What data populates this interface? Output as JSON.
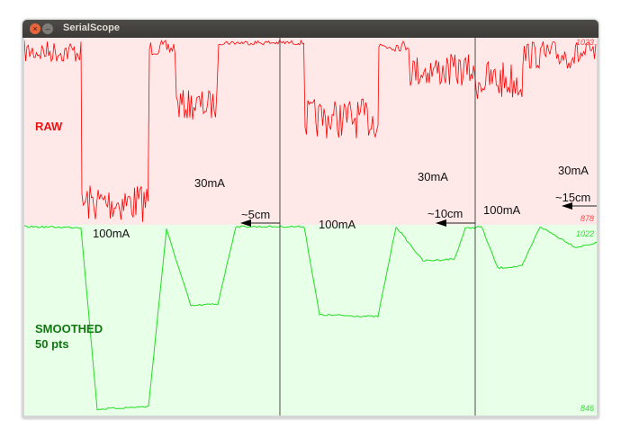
{
  "window": {
    "title": "SerialScope"
  },
  "colors": {
    "raw_bg": "#ffe8e8",
    "smooth_bg": "#e8ffe8",
    "raw_trace": "#ff0000",
    "smooth_trace": "#22dd22",
    "raw_label": "#ee1111",
    "smooth_label": "#117711"
  },
  "raw": {
    "label": "RAW",
    "max_label": "1023",
    "min_label": "878"
  },
  "smoothed": {
    "label": "SMOOTHED",
    "sub_label": "50 pts",
    "max_label": "1022",
    "min_label": "846"
  },
  "annotations": {
    "current_labels": [
      "100mA",
      "30mA",
      "100mA",
      "30mA",
      "100mA",
      "30mA"
    ],
    "distance_labels": [
      "~5cm",
      "~10cm",
      "~15cm"
    ]
  }
}
